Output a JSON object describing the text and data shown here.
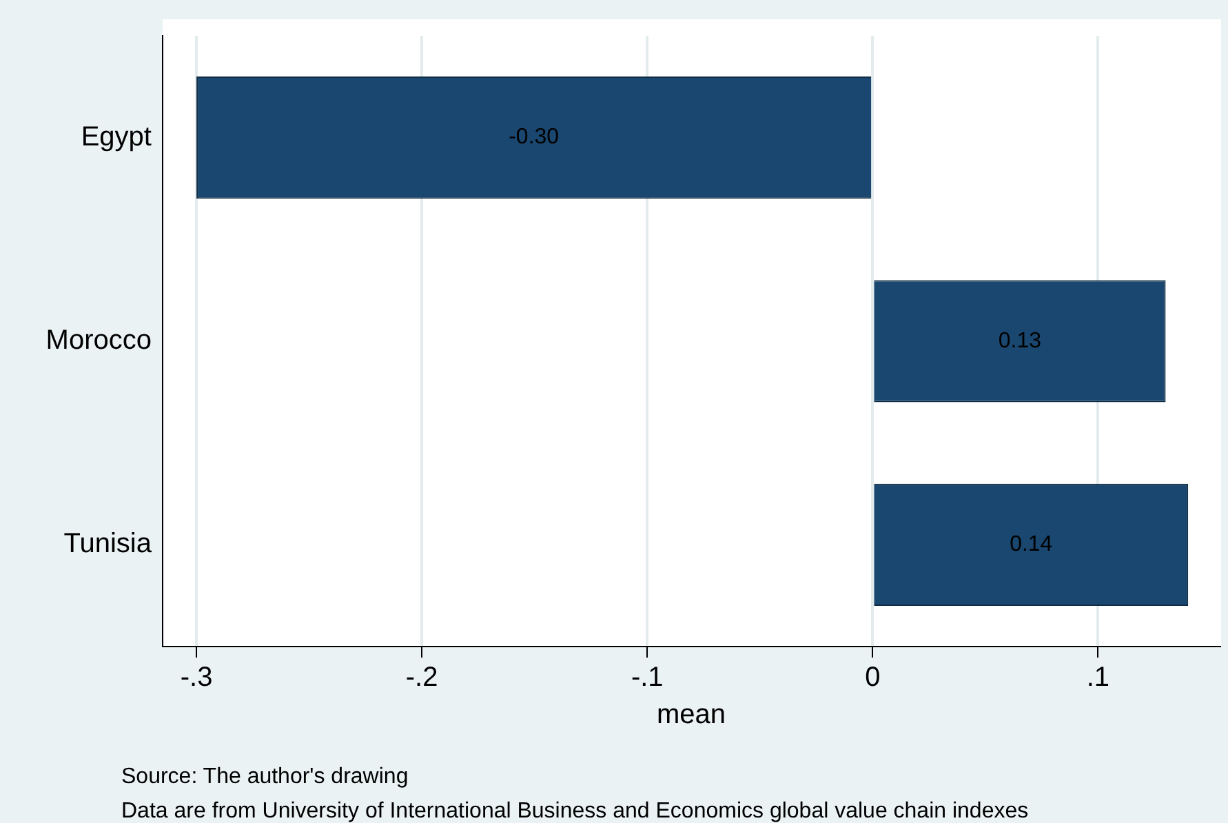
{
  "chart_data": {
    "type": "bar",
    "orientation": "horizontal",
    "categories": [
      "Egypt",
      "Morocco",
      "Tunisia"
    ],
    "values": [
      -0.3,
      0.13,
      0.14
    ],
    "value_labels": [
      "-0.30",
      "0.13",
      "0.14"
    ],
    "color": "#1a476f",
    "xlabel": "mean",
    "xlim": [
      -0.315,
      0.154
    ],
    "xticks": [
      {
        "value": -0.3,
        "label": "-.3"
      },
      {
        "value": -0.2,
        "label": "-.2"
      },
      {
        "value": -0.1,
        "label": "-.1"
      },
      0,
      {
        "value": 0.1,
        "label": ".1"
      }
    ],
    "grid": "x",
    "legend": false,
    "annotations": [
      "Source: The author's drawing",
      "Data are from University of International Business and Economics global value chain indexes"
    ]
  }
}
